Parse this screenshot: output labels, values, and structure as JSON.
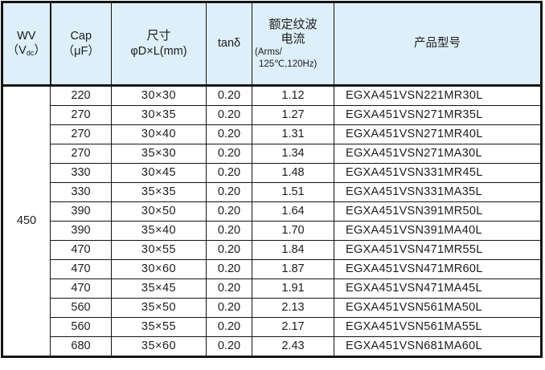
{
  "colors": {
    "header_bg": "#ddeff8",
    "border": "#141414",
    "text": "#1c1c1c",
    "body_bg": "#ffffff"
  },
  "table": {
    "header": {
      "wv": {
        "line1": "WV",
        "line2_open": "（V",
        "line2_sub": "dc",
        "line2_close": "）"
      },
      "cap": {
        "line1": "Cap",
        "line2": "（μF）"
      },
      "size": {
        "line1": "尺寸",
        "line2": "φD×L(mm)"
      },
      "tan": "tanδ",
      "ripple": {
        "line1": "额定纹波",
        "line2": "电流",
        "line3": "(Arms/",
        "line4": "125℃,120Hz)"
      },
      "model": "产品型号"
    },
    "wv_value": "450",
    "rows": [
      {
        "cap": "220",
        "size": "30×30",
        "tan": "0.20",
        "ripple": "1.12",
        "model": "EGXA451VSN221MR30L"
      },
      {
        "cap": "270",
        "size": "30×35",
        "tan": "0.20",
        "ripple": "1.27",
        "model": "EGXA451VSN271MR35L"
      },
      {
        "cap": "270",
        "size": "30×40",
        "tan": "0.20",
        "ripple": "1.31",
        "model": "EGXA451VSN271MR40L"
      },
      {
        "cap": "270",
        "size": "35×30",
        "tan": "0.20",
        "ripple": "1.34",
        "model": "EGXA451VSN271MA30L"
      },
      {
        "cap": "330",
        "size": "30×45",
        "tan": "0.20",
        "ripple": "1.48",
        "model": "EGXA451VSN331MR45L"
      },
      {
        "cap": "330",
        "size": "35×35",
        "tan": "0.20",
        "ripple": "1.51",
        "model": "EGXA451VSN331MA35L"
      },
      {
        "cap": "390",
        "size": "30×50",
        "tan": "0.20",
        "ripple": "1.64",
        "model": "EGXA451VSN391MR50L"
      },
      {
        "cap": "390",
        "size": "35×40",
        "tan": "0.20",
        "ripple": "1.70",
        "model": "EGXA451VSN391MA40L"
      },
      {
        "cap": "470",
        "size": "30×55",
        "tan": "0.20",
        "ripple": "1.84",
        "model": "EGXA451VSN471MR55L"
      },
      {
        "cap": "470",
        "size": "30×60",
        "tan": "0.20",
        "ripple": "1.87",
        "model": "EGXA451VSN471MR60L"
      },
      {
        "cap": "470",
        "size": "35×45",
        "tan": "0.20",
        "ripple": "1.91",
        "model": "EGXA451VSN471MA45L"
      },
      {
        "cap": "560",
        "size": "35×50",
        "tan": "0.20",
        "ripple": "2.13",
        "model": "EGXA451VSN561MA50L"
      },
      {
        "cap": "560",
        "size": "35×55",
        "tan": "0.20",
        "ripple": "2.17",
        "model": "EGXA451VSN561MA55L"
      },
      {
        "cap": "680",
        "size": "35×60",
        "tan": "0.20",
        "ripple": "2.43",
        "model": "EGXA451VSN681MA60L"
      }
    ]
  }
}
